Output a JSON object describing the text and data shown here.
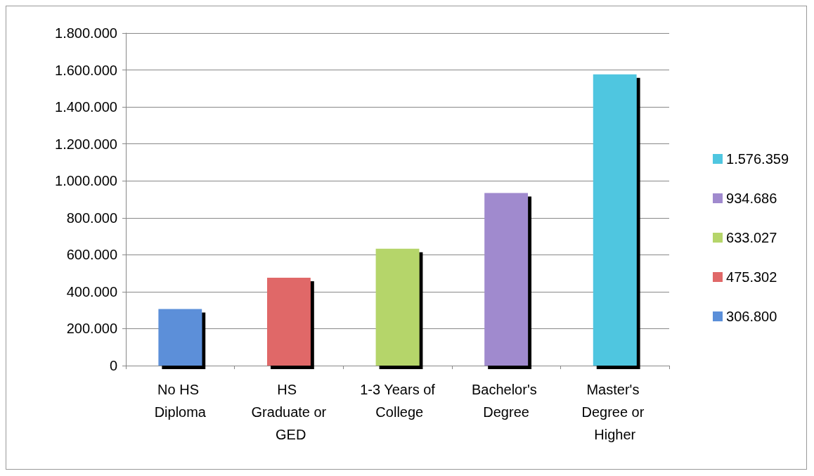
{
  "chart_data": {
    "type": "bar",
    "stacked": true,
    "categories": [
      "No HS Diploma",
      "HS Graduate or GED",
      "1-3 Years of College",
      "Bachelor's Degree",
      "Master's Degree or Higher"
    ],
    "series": [
      {
        "name": "306.800",
        "color": "#5b8fd9",
        "values": [
          306800,
          null,
          null,
          null,
          null
        ]
      },
      {
        "name": "475.302",
        "color": "#e06868",
        "values": [
          null,
          475302,
          null,
          null,
          null
        ]
      },
      {
        "name": "633.027",
        "color": "#b5d56a",
        "values": [
          null,
          null,
          633027,
          null,
          null
        ]
      },
      {
        "name": "934.686",
        "color": "#a08ace",
        "values": [
          null,
          null,
          null,
          934686,
          null
        ]
      },
      {
        "name": "1.576.359",
        "color": "#4fc6e0",
        "values": [
          null,
          null,
          null,
          null,
          1576359
        ]
      }
    ],
    "ylim": [
      0,
      1800000
    ],
    "yticks": [
      0,
      {
        "value": 200000,
        "label": "200.000"
      },
      {
        "value": 400000,
        "label": "400.000"
      },
      {
        "value": 600000,
        "label": "600.000"
      },
      {
        "value": 800000,
        "label": "800.000"
      },
      {
        "value": 1000000,
        "label": "1.000.000"
      },
      {
        "value": 1200000,
        "label": "1.200.000"
      },
      {
        "value": 1400000,
        "label": "1.400.000"
      },
      {
        "value": 1600000,
        "label": "1.600.000"
      },
      {
        "value": 1800000,
        "label": "1.800.000"
      }
    ],
    "grid": "y",
    "legend": "right"
  }
}
